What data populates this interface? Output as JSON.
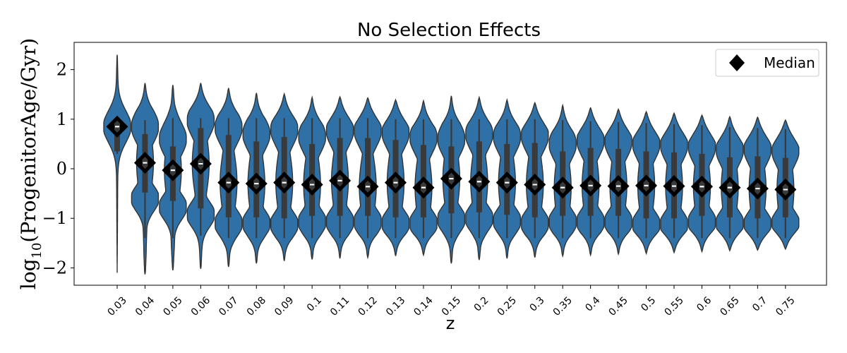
{
  "chart_data": {
    "type": "violin",
    "title": "No Selection Effects",
    "xlabel": "z",
    "ylabel_main": "log",
    "ylabel_sub": "10",
    "ylabel_rest": "(ProgenitorAge/Gyr)",
    "ylim": [
      -2.35,
      2.55
    ],
    "yticks": [
      2,
      1,
      0,
      -1,
      -2
    ],
    "ytick_labels": [
      "2",
      "1",
      "0",
      "−1",
      "−2"
    ],
    "legend": {
      "label": "Median",
      "position": "upper right"
    },
    "colors": {
      "violin": "#2f70a7",
      "edge": "#333333",
      "box": "#3a3a3a",
      "median_marker": "#000000",
      "median_line": "#ffffff"
    },
    "categories": [
      "0.03",
      "0.04",
      "0.05",
      "0.06",
      "0.07",
      "0.08",
      "0.09",
      "0.1",
      "0.11",
      "0.12",
      "0.13",
      "0.14",
      "0.15",
      "0.2",
      "0.25",
      "0.3",
      "0.35",
      "0.4",
      "0.45",
      "0.5",
      "0.55",
      "0.6",
      "0.65",
      "0.7",
      "0.75"
    ],
    "medians": [
      0.85,
      0.12,
      -0.03,
      0.1,
      -0.28,
      -0.3,
      -0.28,
      -0.32,
      -0.24,
      -0.36,
      -0.28,
      -0.38,
      -0.2,
      -0.26,
      -0.28,
      -0.32,
      -0.38,
      -0.34,
      -0.35,
      -0.34,
      -0.35,
      -0.36,
      -0.38,
      -0.4,
      -0.42
    ],
    "q1": [
      0.35,
      -0.48,
      -0.65,
      -0.8,
      -0.98,
      -0.98,
      -1.0,
      -0.95,
      -0.95,
      -0.95,
      -0.98,
      -0.98,
      -0.9,
      -0.88,
      -0.93,
      -0.98,
      -0.95,
      -0.95,
      -0.95,
      -1.0,
      -1.0,
      -0.95,
      -0.98,
      -1.0,
      -0.98
    ],
    "q3": [
      0.95,
      0.7,
      0.45,
      0.82,
      0.68,
      0.55,
      0.64,
      0.5,
      0.62,
      0.62,
      0.58,
      0.48,
      0.45,
      0.55,
      0.5,
      0.52,
      0.35,
      0.42,
      0.4,
      0.35,
      0.33,
      0.3,
      0.23,
      0.25,
      0.22
    ],
    "whisker_low": [
      0.3,
      -1.4,
      -1.4,
      -1.35,
      -1.4,
      -1.4,
      -1.4,
      -1.4,
      -1.4,
      -1.4,
      -1.4,
      -1.4,
      -1.4,
      -1.4,
      -1.4,
      -1.4,
      -1.4,
      -1.4,
      -1.4,
      -1.4,
      -1.4,
      -1.4,
      -1.4,
      -1.4,
      -1.4
    ],
    "whisker_high": [
      1.0,
      0.98,
      1.02,
      1.02,
      1.02,
      1.02,
      1.02,
      1.02,
      1.02,
      1.02,
      1.0,
      1.0,
      1.0,
      1.0,
      1.0,
      1.0,
      0.98,
      0.96,
      0.94,
      0.92,
      0.9,
      0.88,
      0.84,
      0.82,
      0.8
    ],
    "ymin": [
      -2.1,
      -2.13,
      -2.05,
      -2.02,
      -1.98,
      -1.91,
      -1.86,
      -1.83,
      -1.81,
      -1.79,
      -1.76,
      -1.74,
      -1.91,
      -1.84,
      -1.81,
      -1.79,
      -1.76,
      -1.74,
      -1.72,
      -1.71,
      -1.69,
      -1.67,
      -1.65,
      -1.64,
      -1.62
    ],
    "ymax": [
      2.3,
      1.73,
      1.69,
      1.73,
      1.63,
      1.53,
      1.51,
      1.44,
      1.45,
      1.43,
      1.39,
      1.37,
      1.47,
      1.44,
      1.39,
      1.33,
      1.28,
      1.23,
      1.2,
      1.15,
      1.12,
      1.08,
      1.05,
      1.04,
      0.98
    ]
  }
}
